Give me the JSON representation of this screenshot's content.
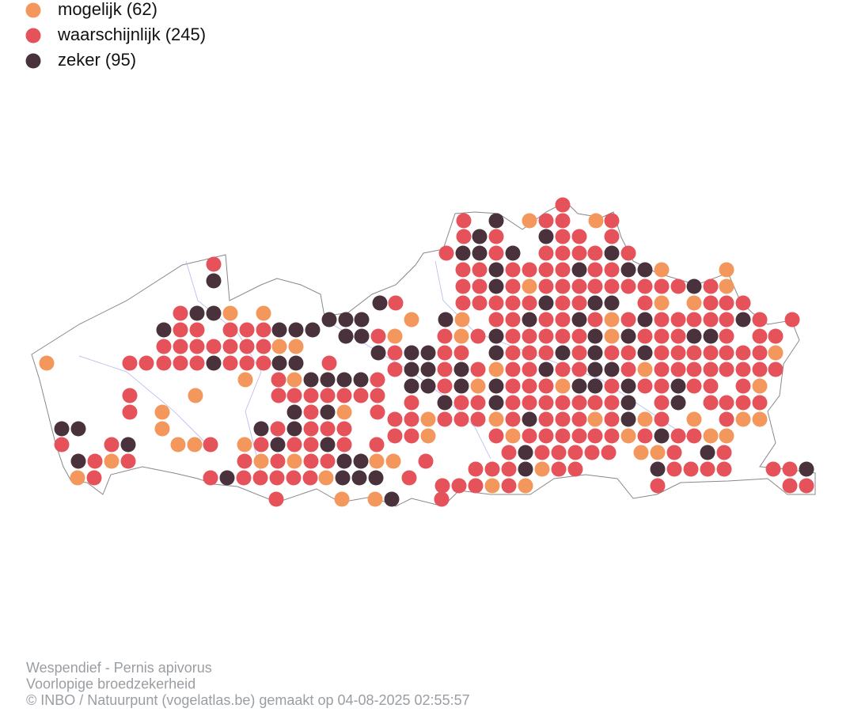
{
  "legend": [
    {
      "label": "mogelijk (62)",
      "color": "#f4975c"
    },
    {
      "label": "waarschijnlijk (245)",
      "color": "#e5525a"
    },
    {
      "label": "zeker (95)",
      "color": "#4a323d"
    }
  ],
  "footer": [
    "Wespendief - Pernis apivorus",
    "Voorlopige broedzekerheid",
    "© INBO / Natuurpunt (vogelatlas.be) gemaakt op 04-08-2025 02:55:57"
  ]
}
